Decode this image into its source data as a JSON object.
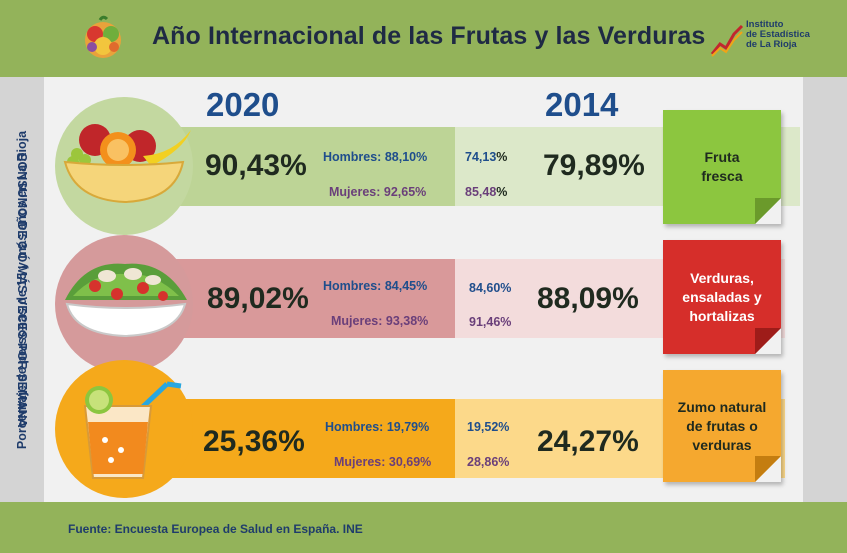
{
  "header": {
    "title": "Año Internacional de las Frutas y las Verduras",
    "logo_text": [
      "Instituto",
      "de Estadística",
      "de La Rioja"
    ]
  },
  "side": {
    "left": "Porcentaje de personas de 15 y más años en La Rioja",
    "right": "CONSUMO DE 3 Ó MÁS VECES POR SEMANA"
  },
  "years": {
    "current": "2020",
    "previous": "2014"
  },
  "rows": [
    {
      "category": "Fruta fresca",
      "icon": "fruit-bowl-icon",
      "total_2020": "90,43%",
      "hombres_label": "Hombres: ",
      "hombres_2020": "88,10%",
      "mujeres_label": "Mujeres: ",
      "mujeres_2020": "92,65%",
      "hombres_2014_num": "74,13",
      "hombres_2014_sym": "%",
      "mujeres_2014_num": "85,48",
      "mujeres_2014_sym": "%",
      "total_2014": "79,89%",
      "colors": {
        "dark": "#bdd496",
        "light": "#dce8c9",
        "circle": "#c3d8a0",
        "label": "#8cc63f",
        "fold": "#6b9a2b"
      }
    },
    {
      "category": "Verduras, ensaladas y hortalizas",
      "icon": "salad-bowl-icon",
      "total_2020": "89,02%",
      "hombres_label": "Hombres: ",
      "hombres_2020": "84,45%",
      "mujeres_label": "Mujeres: ",
      "mujeres_2020": "93,38%",
      "hombres_2014_num": "84,60%",
      "hombres_2014_sym": "",
      "mujeres_2014_num": "91,46%",
      "mujeres_2014_sym": "",
      "total_2014": "88,09%",
      "colors": {
        "dark": "#d9999a",
        "light": "#f3dcdc",
        "circle": "#d59a9b",
        "label": "#d62e2a",
        "fold": "#9e1c19"
      }
    },
    {
      "category": "Zumo natural de frutas o verduras",
      "icon": "juice-glass-icon",
      "total_2020": "25,36%",
      "hombres_label": "Hombres: ",
      "hombres_2020": "19,79%",
      "mujeres_label": "Mujeres: ",
      "mujeres_2020": "30,69%",
      "hombres_2014_num": "19,52%",
      "hombres_2014_sym": "",
      "mujeres_2014_num": "28,86%",
      "mujeres_2014_sym": "",
      "total_2014": "24,27%",
      "colors": {
        "dark": "#f5a91b",
        "light": "#fcd98a",
        "circle": "#f5a91b",
        "label": "#f5a82f",
        "fold": "#c47d10"
      }
    }
  ],
  "footer": {
    "source": "Fuente: Encuesta  Europea de Salud en España. INE"
  }
}
